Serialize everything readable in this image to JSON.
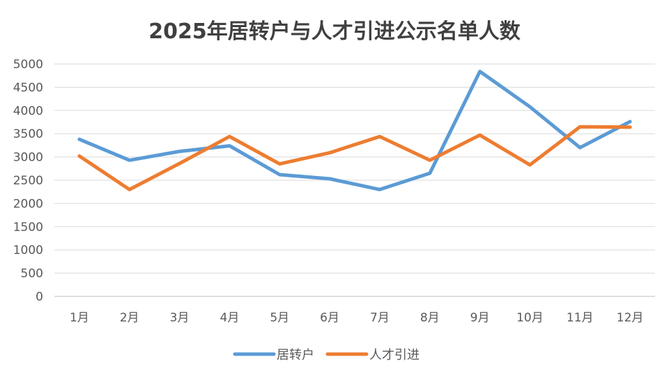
{
  "chart_data": {
    "type": "line",
    "title": "2025年居转户与人才引进公示名单人数",
    "xlabel": "",
    "ylabel": "",
    "categories": [
      "1月",
      "2月",
      "3月",
      "4月",
      "5月",
      "6月",
      "7月",
      "8月",
      "9月",
      "10月",
      "11月",
      "12月"
    ],
    "ylim": [
      0,
      5000
    ],
    "yticks": [
      0,
      500,
      1000,
      1500,
      2000,
      2500,
      3000,
      3500,
      4000,
      4500,
      5000
    ],
    "grid": true,
    "legend_position": "bottom",
    "series": [
      {
        "name": "居转户",
        "color": "#5B9BD5",
        "values": [
          3380,
          2930,
          3120,
          3240,
          2620,
          2530,
          2300,
          2650,
          4840,
          4080,
          3200,
          3760
        ]
      },
      {
        "name": "人才引进",
        "color": "#ED7D31",
        "values": [
          3020,
          2300,
          2860,
          3440,
          2850,
          3090,
          3440,
          2930,
          3470,
          2830,
          3650,
          3640
        ]
      }
    ]
  }
}
